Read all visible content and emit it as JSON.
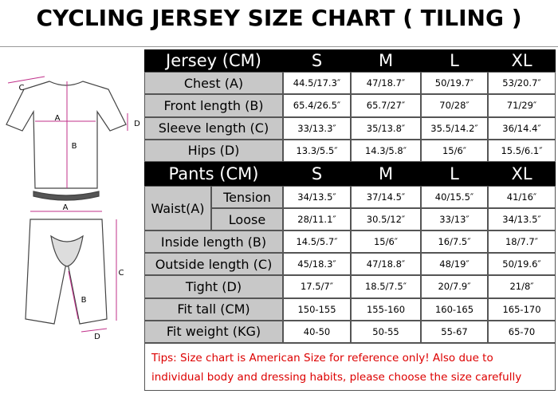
{
  "title": "CYCLING JERSEY SIZE CHART ( TILING )",
  "diagram": {
    "jersey_labels": [
      "C",
      "A",
      "B",
      "D"
    ],
    "pants_labels": [
      "A",
      "C",
      "B",
      "D"
    ]
  },
  "jersey": {
    "header": [
      "Jersey  (CM)",
      "S",
      "M",
      "L",
      "XL"
    ],
    "rows": [
      [
        "Chest (A)",
        "44.5/17.3″",
        "47/18.7″",
        "50/19.7″",
        "53/20.7″"
      ],
      [
        "Front length (B)",
        "65.4/26.5″",
        "65.7/27″",
        "70/28″",
        "71/29″"
      ],
      [
        "Sleeve length (C)",
        "33/13.3″",
        "35/13.8″",
        "35.5/14.2″",
        "36/14.4″"
      ],
      [
        "Hips (D)",
        "13.3/5.5″",
        "14.3/5.8″",
        "15/6″",
        "15.5/6.1″"
      ]
    ]
  },
  "pants": {
    "header": [
      "Pants  (CM)",
      "S",
      "M",
      "L",
      "XL"
    ],
    "waist": {
      "label": "Waist(A)",
      "rows": [
        [
          "Tension",
          "34/13.5″",
          "37/14.5″",
          "40/15.5″",
          "41/16″"
        ],
        [
          "Loose",
          "28/11.1″",
          "30.5/12″",
          "33/13″",
          "34/13.5″"
        ]
      ]
    },
    "rows": [
      [
        "Inside length (B)",
        "14.5/5.7″",
        "15/6″",
        "16/7.5″",
        "18/7.7″"
      ],
      [
        "Outside length (C)",
        "45/18.3″",
        "47/18.8″",
        "48/19″",
        "50/19.6″"
      ],
      [
        "Tight (D)",
        "17.5/7″",
        "18.5/7.5″",
        "20/7.9″",
        "21/8″"
      ],
      [
        "Fit tall (CM)",
        "150-155",
        "155-160",
        "160-165",
        "165-170"
      ],
      [
        "Fit weight (KG)",
        "40-50",
        "50-55",
        "55-67",
        "65-70"
      ]
    ]
  },
  "tips": [
    "Tips: Size chart is American Size for reference only! Also due to",
    "individual body and dressing habits, please choose the size carefully"
  ]
}
